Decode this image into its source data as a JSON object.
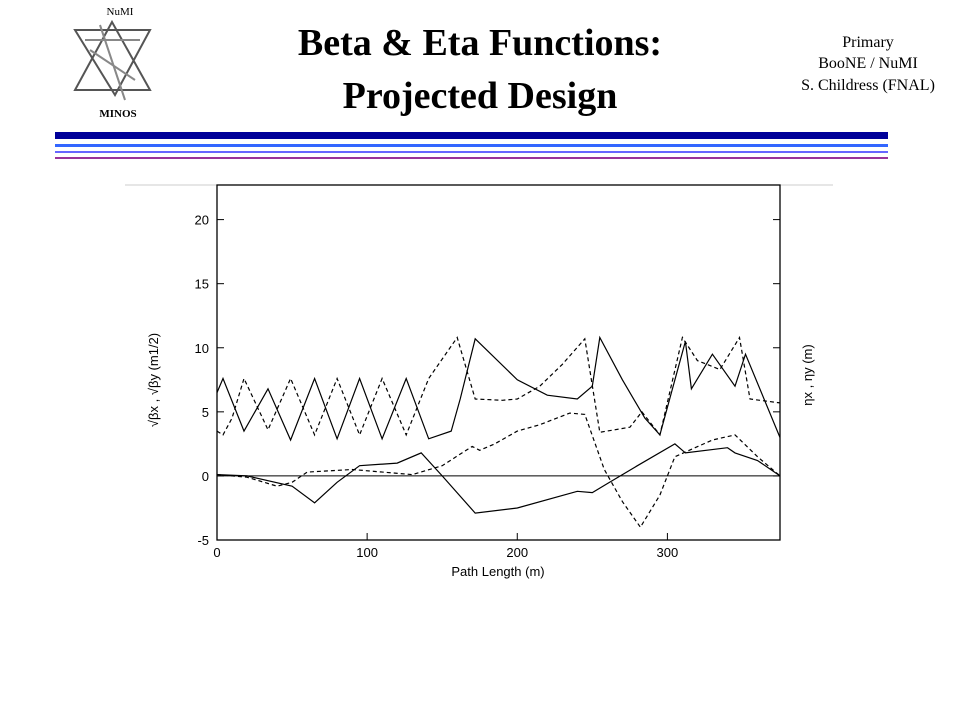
{
  "header": {
    "logo_top": "NuMI",
    "logo_bottom": "MINOS",
    "title": [
      "Beta & Eta Functions:",
      "Projected Design"
    ],
    "info": [
      "Primary",
      "BooNE / NuMI",
      "S. Childress (FNAL)"
    ]
  },
  "chart_data": {
    "type": "line",
    "x_label": "Path Length (m)",
    "y_label": "√βx , √βy (m1/2)",
    "y2_label": "ηx , ηy (m)",
    "xlim": [
      0,
      375
    ],
    "xticks": [
      0,
      100,
      200,
      300
    ],
    "ylim": [
      -5,
      22.7
    ],
    "yticks": [
      -5,
      0,
      5,
      10,
      15,
      20
    ],
    "series": [
      {
        "color": "#000000",
        "dashed": false,
        "x": [
          0,
          4,
          18,
          34,
          49,
          65,
          80,
          95,
          110,
          126,
          141,
          156,
          162,
          172,
          200,
          220,
          240,
          250,
          255,
          270,
          285,
          295,
          305,
          312,
          316,
          330,
          345,
          352,
          375
        ],
        "values": [
          6.5,
          7.6,
          3.5,
          6.8,
          2.8,
          7.6,
          2.9,
          7.6,
          2.9,
          7.6,
          2.9,
          3.5,
          6,
          10.7,
          7.5,
          6.3,
          6,
          7,
          10.8,
          7.5,
          4.5,
          3.2,
          7.5,
          10.5,
          6.8,
          9.5,
          7,
          9.5,
          3
        ]
      },
      {
        "color": "#000000",
        "dashed": true,
        "x": [
          0,
          4,
          10,
          18,
          34,
          49,
          65,
          80,
          95,
          110,
          126,
          141,
          160,
          172,
          190,
          200,
          215,
          230,
          245,
          255,
          275,
          283,
          295,
          310,
          320,
          335,
          348,
          355,
          375
        ],
        "values": [
          3.5,
          3.2,
          4.5,
          7.6,
          3.6,
          7.6,
          3.2,
          7.6,
          3.2,
          7.6,
          3.2,
          7.6,
          10.8,
          6,
          5.9,
          6,
          7,
          8.7,
          10.7,
          3.4,
          3.8,
          5,
          3.2,
          10.8,
          9,
          8.3,
          10.8,
          6,
          5.7
        ]
      },
      {
        "color": "#000000",
        "dashed": false,
        "x": [
          0,
          20,
          50,
          65,
          80,
          95,
          120,
          136,
          150,
          172,
          200,
          240,
          250,
          260,
          280,
          305,
          312,
          340,
          345,
          360,
          375
        ],
        "values": [
          0.1,
          0,
          -0.8,
          -2.1,
          -0.5,
          0.8,
          1,
          1.8,
          0,
          -2.9,
          -2.5,
          -1.2,
          -1.3,
          -0.6,
          0.8,
          2.5,
          1.8,
          2.2,
          1.8,
          1.2,
          0
        ]
      },
      {
        "color": "#000000",
        "dashed": true,
        "x": [
          0,
          20,
          40,
          50,
          60,
          90,
          130,
          150,
          170,
          175,
          185,
          200,
          215,
          235,
          245,
          258,
          270,
          282,
          295,
          305,
          330,
          345,
          360,
          375
        ],
        "values": [
          0.1,
          -0.1,
          -0.8,
          -0.5,
          0.3,
          0.5,
          0.1,
          0.8,
          2.3,
          2,
          2.5,
          3.5,
          4,
          4.9,
          4.8,
          0.5,
          -2,
          -4,
          -1.5,
          1.5,
          2.8,
          3.2,
          1.5,
          0
        ]
      }
    ]
  }
}
